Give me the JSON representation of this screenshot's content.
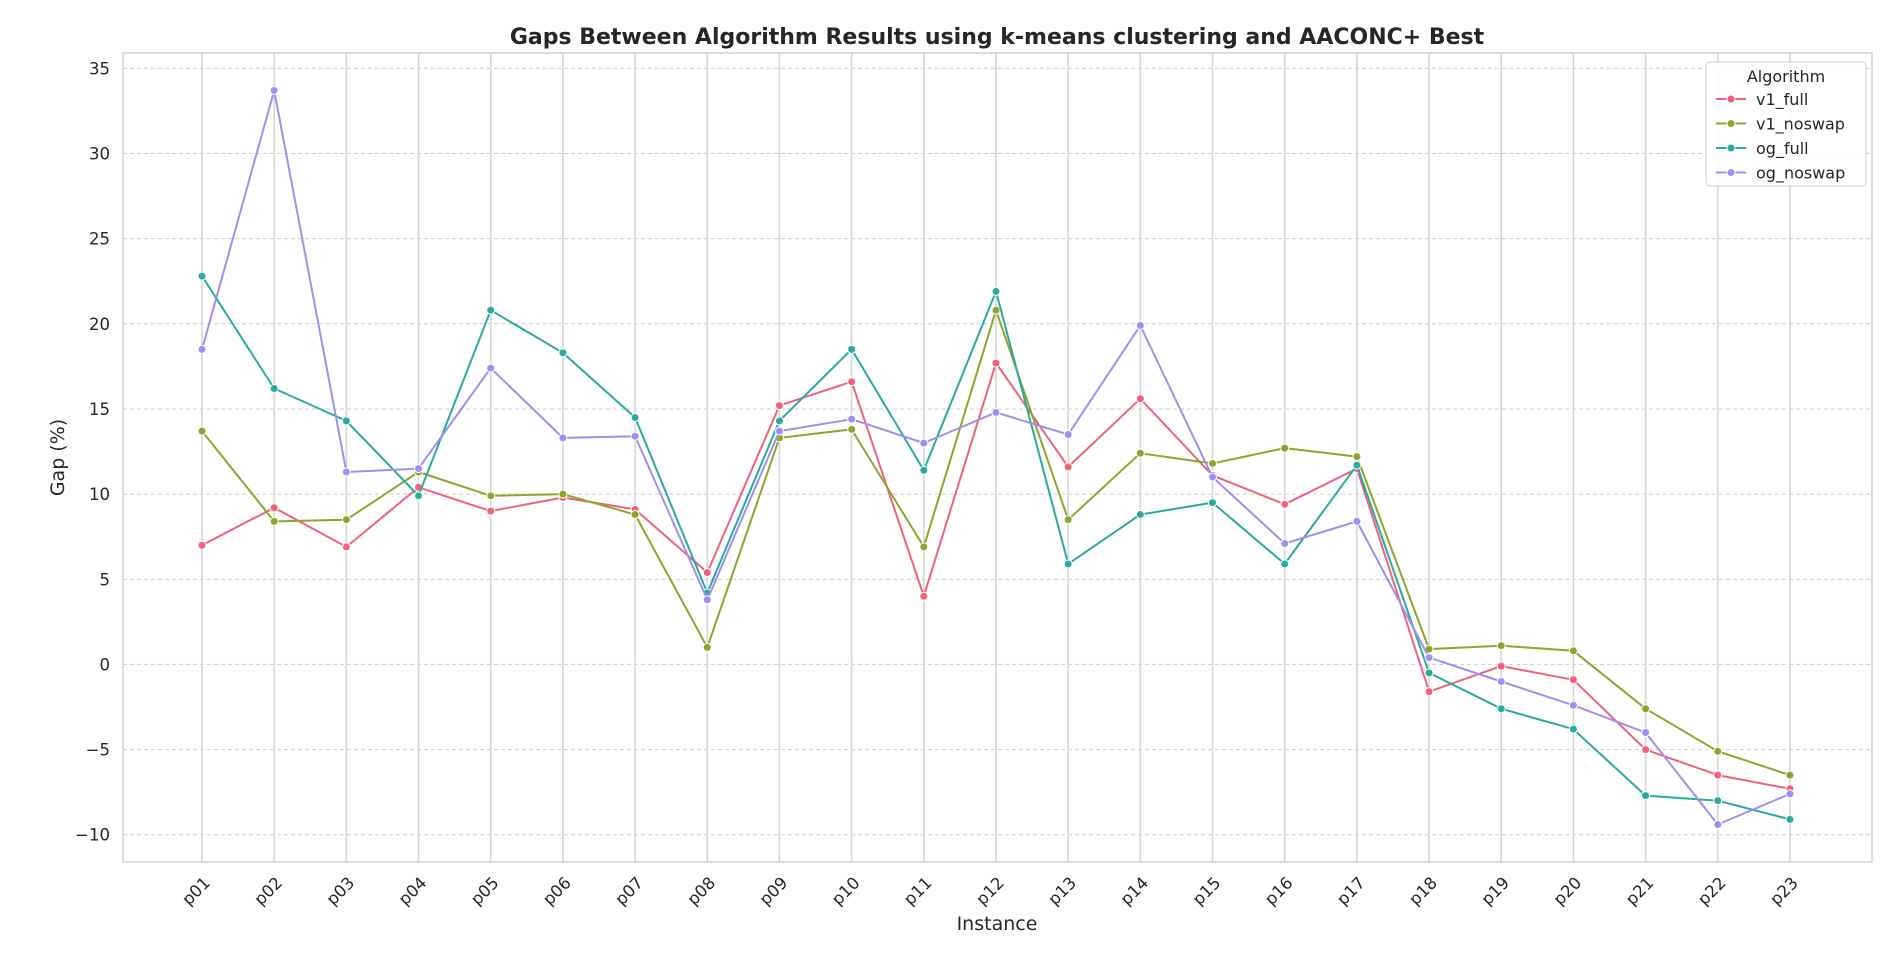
{
  "chart_data": {
    "type": "line",
    "title": "Gaps Between Algorithm Results using k-means clustering and AACONC+ Best",
    "xlabel": "Instance",
    "ylabel": "Gap (%)",
    "ylim": [
      -11.6,
      35.9
    ],
    "yticks": [
      -10,
      -5,
      0,
      5,
      10,
      15,
      20,
      25,
      30,
      35
    ],
    "ytick_labels": [
      "−10",
      "−5",
      "0",
      "5",
      "10",
      "15",
      "20",
      "25",
      "30",
      "35"
    ],
    "grid": true,
    "legend": {
      "title": "Algorithm",
      "placement": "top-right"
    },
    "categories": [
      "p01",
      "p02",
      "p03",
      "p04",
      "p05",
      "p06",
      "p07",
      "p08",
      "p09",
      "p10",
      "p11",
      "p12",
      "p13",
      "p14",
      "p15",
      "p16",
      "p17",
      "p18",
      "p19",
      "p20",
      "p21",
      "p22",
      "p23"
    ],
    "series": [
      {
        "name": "v1_full",
        "color": "#f0627b",
        "values": [
          7.0,
          9.2,
          6.9,
          10.4,
          9.0,
          9.8,
          9.1,
          5.4,
          15.2,
          16.6,
          4.0,
          17.7,
          11.6,
          15.6,
          11.1,
          9.4,
          11.5,
          -1.6,
          -0.1,
          -0.9,
          -5.0,
          -6.5,
          -7.3
        ]
      },
      {
        "name": "v1_noswap",
        "color": "#8ea52d",
        "values": [
          13.7,
          8.4,
          8.5,
          11.3,
          9.9,
          10.0,
          8.8,
          1.0,
          13.3,
          13.8,
          6.9,
          20.8,
          8.5,
          12.4,
          11.8,
          12.7,
          12.2,
          0.9,
          1.1,
          0.8,
          -2.6,
          -5.1,
          -6.5
        ]
      },
      {
        "name": "og_full",
        "color": "#2aaa9d",
        "values": [
          22.8,
          16.2,
          14.3,
          9.9,
          20.8,
          18.3,
          14.5,
          4.2,
          14.3,
          18.5,
          11.4,
          21.9,
          5.9,
          8.8,
          9.5,
          5.9,
          11.7,
          -0.5,
          -2.6,
          -3.8,
          -7.7,
          -8.0,
          -9.1
        ]
      },
      {
        "name": "og_noswap",
        "color": "#a08ef0",
        "values": [
          18.5,
          33.7,
          11.3,
          11.5,
          17.4,
          13.3,
          13.4,
          3.8,
          13.7,
          14.4,
          13.0,
          14.8,
          13.5,
          19.9,
          11.0,
          7.1,
          8.4,
          0.4,
          -1.0,
          -2.4,
          -4.0,
          -9.4,
          -7.6
        ]
      }
    ]
  }
}
